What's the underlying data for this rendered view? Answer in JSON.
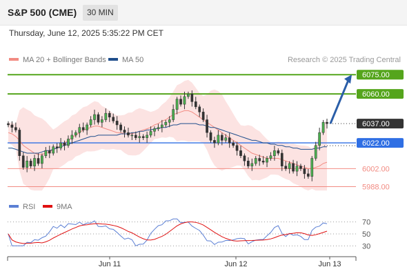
{
  "header": {
    "title": "S&P 500 (CME)",
    "interval": "30 MIN",
    "timestamp": "Thursday, June 12, 2025 5:35:22 PM CET"
  },
  "legend": {
    "items": [
      {
        "label": "MA 20 + Bollinger Bands",
        "color": "#f28b82"
      },
      {
        "label": "MA 50",
        "color": "#1f4e8c"
      }
    ],
    "attribution": "Research © 2025 Trading Central"
  },
  "colors": {
    "resistance": "#55a51c",
    "pivot": "#2f6fe4",
    "support": "#f28b82",
    "forecast_arrow": "#2a5ea8",
    "price_label": "#333333"
  },
  "chart_data": {
    "type": "candlestick",
    "x_labels": [
      "Jun 11",
      "Jun 12",
      "Jun 13"
    ],
    "ylim": [
      5984,
      6081
    ],
    "levels": [
      {
        "value": 6075.0,
        "label": "6075.00",
        "kind": "resistance"
      },
      {
        "value": 6060.0,
        "label": "6060.00",
        "kind": "resistance"
      },
      {
        "value": 6037.0,
        "label": "6037.00",
        "kind": "last-price"
      },
      {
        "value": 6022.0,
        "label": "6022.00",
        "kind": "pivot"
      },
      {
        "value": 6002.0,
        "label": "6002.00",
        "kind": "support"
      },
      {
        "value": 5988.0,
        "label": "5988.00",
        "kind": "support"
      }
    ],
    "forecast": {
      "from": 6037.0,
      "to": 6075.0
    },
    "close": [
      6036,
      6034,
      6032,
      6012,
      6003,
      6008,
      6004,
      6010,
      6006,
      6012,
      6016,
      6014,
      6019,
      6018,
      6022,
      6020,
      6025,
      6028,
      6030,
      6034,
      6032,
      6036,
      6040,
      6044,
      6038,
      6040,
      6045,
      6042,
      6039,
      6036,
      6032,
      6030,
      6028,
      6028,
      6026,
      6027,
      6026,
      6028,
      6031,
      6033,
      6034,
      6036,
      6038,
      6040,
      6048,
      6056,
      6052,
      6058,
      6060,
      6054,
      6050,
      6046,
      6040,
      6030,
      6024,
      6022,
      6028,
      6024,
      6026,
      6022,
      6020,
      6016,
      6012,
      6008,
      6004,
      6006,
      6010,
      6008,
      6007,
      6010,
      6012,
      6016,
      6014,
      6004,
      6002,
      6006,
      6000,
      6004,
      6002,
      5998,
      5996,
      6010,
      6020,
      6030,
      6038,
      6037
    ],
    "ma20": [
      6030,
      6029,
      6027,
      6024,
      6020,
      6018,
      6016,
      6014,
      6013,
      6013,
      6014,
      6015,
      6017,
      6018,
      6020,
      6022,
      6024,
      6026,
      6028,
      6030,
      6032,
      6033,
      6034,
      6035,
      6035,
      6034,
      6033,
      6032,
      6031,
      6030,
      6030,
      6029,
      6029,
      6029,
      6030,
      6031,
      6032,
      6033,
      6034,
      6036,
      6037,
      6039,
      6040,
      6042,
      6044,
      6045,
      6046,
      6047,
      6047,
      6046,
      6044,
      6042,
      6040,
      6038,
      6036,
      6034,
      6032,
      6030,
      6028,
      6026,
      6024,
      6022,
      6020,
      6018,
      6016,
      6014,
      6013,
      6012,
      6011,
      6010,
      6010,
      6010,
      6010,
      6009,
      6008,
      6007,
      6006,
      6005,
      6004,
      6003,
      6002,
      6002,
      6003,
      6004,
      6006,
      6007
    ],
    "ma50": [
      6018,
      6018,
      6017,
      6016,
      6015,
      6014,
      6014,
      6014,
      6014,
      6015,
      6016,
      6016,
      6017,
      6018,
      6019,
      6020,
      6021,
      6022,
      6023,
      6024,
      6025,
      6026,
      6027,
      6027,
      6028,
      6028,
      6028,
      6028,
      6028,
      6028,
      6029,
      6029,
      6029,
      6030,
      6030,
      6031,
      6031,
      6032,
      6032,
      6033,
      6033,
      6034,
      6034,
      6035,
      6036,
      6036,
      6037,
      6037,
      6037,
      6037,
      6037,
      6036,
      6036,
      6035,
      6034,
      6034,
      6033,
      6032,
      6031,
      6030,
      6029,
      6028,
      6027,
      6026,
      6025,
      6024,
      6024,
      6023,
      6022,
      6022,
      6021,
      6021,
      6020,
      6020,
      6019,
      6019,
      6018,
      6018,
      6017,
      6017,
      6017,
      6017,
      6018,
      6018,
      6019,
      6019
    ],
    "rsi_panel": {
      "legend": [
        {
          "label": "RSI",
          "color": "#5b7fd4"
        },
        {
          "label": "9MA",
          "color": "#e01010"
        }
      ],
      "ylim": [
        20,
        80
      ],
      "ticks": [
        "70",
        "50",
        "30"
      ],
      "levels": [
        70,
        50,
        30
      ]
    }
  }
}
